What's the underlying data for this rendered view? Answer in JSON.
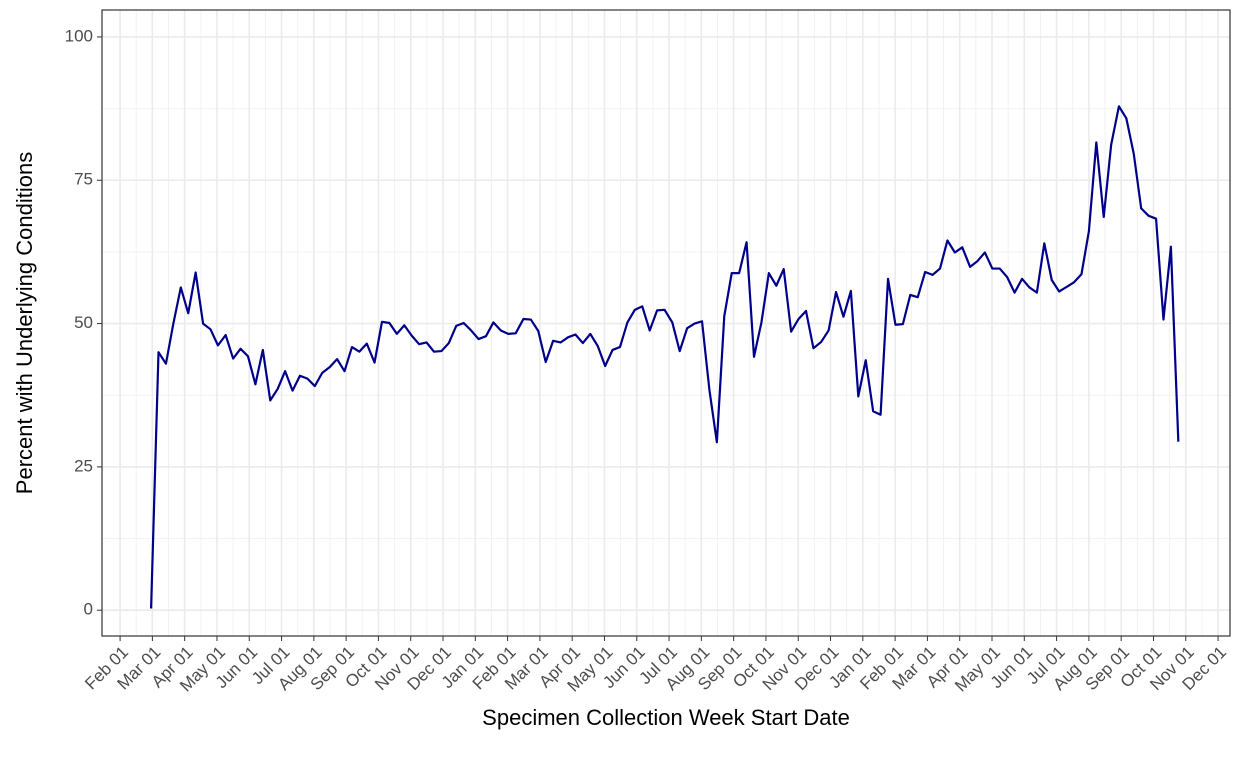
{
  "chart_data": {
    "type": "line",
    "x_label": "Specimen Collection Week Start Date",
    "y_label": "Percent with Underlying Conditions",
    "xlim": [
      -0.56,
      34.37
    ],
    "ylim": [
      -4.5,
      104.7
    ],
    "xticks": [
      {
        "value": 0,
        "label": "Feb 01"
      },
      {
        "value": 1,
        "label": "Mar 01"
      },
      {
        "value": 2,
        "label": "Apr 01"
      },
      {
        "value": 3,
        "label": "May 01"
      },
      {
        "value": 4,
        "label": "Jun 01"
      },
      {
        "value": 5,
        "label": "Jul 01"
      },
      {
        "value": 6,
        "label": "Aug 01"
      },
      {
        "value": 7,
        "label": "Sep 01"
      },
      {
        "value": 8,
        "label": "Oct 01"
      },
      {
        "value": 9,
        "label": "Nov 01"
      },
      {
        "value": 10,
        "label": "Dec 01"
      },
      {
        "value": 11,
        "label": "Jan 01"
      },
      {
        "value": 12,
        "label": "Feb 01"
      },
      {
        "value": 13,
        "label": "Mar 01"
      },
      {
        "value": 14,
        "label": "Apr 01"
      },
      {
        "value": 15,
        "label": "May 01"
      },
      {
        "value": 16,
        "label": "Jun 01"
      },
      {
        "value": 17,
        "label": "Jul 01"
      },
      {
        "value": 18,
        "label": "Aug 01"
      },
      {
        "value": 19,
        "label": "Sep 01"
      },
      {
        "value": 20,
        "label": "Oct 01"
      },
      {
        "value": 21,
        "label": "Nov 01"
      },
      {
        "value": 22,
        "label": "Dec 01"
      },
      {
        "value": 23,
        "label": "Jan 01"
      },
      {
        "value": 24,
        "label": "Feb 01"
      },
      {
        "value": 25,
        "label": "Mar 01"
      },
      {
        "value": 26,
        "label": "Apr 01"
      },
      {
        "value": 27,
        "label": "May 01"
      },
      {
        "value": 28,
        "label": "Jun 01"
      },
      {
        "value": 29,
        "label": "Jul 01"
      },
      {
        "value": 30,
        "label": "Aug 01"
      },
      {
        "value": 31,
        "label": "Sep 01"
      },
      {
        "value": 32,
        "label": "Oct 01"
      },
      {
        "value": 33,
        "label": "Nov 01"
      },
      {
        "value": 34,
        "label": "Dec 01"
      }
    ],
    "yticks": [
      0,
      25,
      50,
      75,
      100
    ],
    "grid": true,
    "x": [
      0.96,
      1.19,
      1.42,
      1.65,
      1.88,
      2.11,
      2.34,
      2.57,
      2.8,
      3.03,
      3.27,
      3.5,
      3.73,
      3.96,
      4.19,
      4.42,
      4.65,
      4.88,
      5.11,
      5.34,
      5.57,
      5.8,
      6.03,
      6.26,
      6.49,
      6.72,
      6.95,
      7.18,
      7.41,
      7.64,
      7.88,
      8.11,
      8.34,
      8.57,
      8.8,
      9.03,
      9.26,
      9.49,
      9.72,
      9.95,
      10.18,
      10.41,
      10.64,
      10.87,
      11.1,
      11.33,
      11.56,
      11.79,
      12.02,
      12.25,
      12.49,
      12.72,
      12.95,
      13.18,
      13.41,
      13.64,
      13.87,
      14.1,
      14.33,
      14.56,
      14.79,
      15.02,
      15.25,
      15.48,
      15.71,
      15.94,
      16.17,
      16.4,
      16.63,
      16.86,
      17.1,
      17.33,
      17.56,
      17.79,
      18.02,
      18.25,
      18.48,
      18.71,
      18.94,
      19.17,
      19.4,
      19.63,
      19.86,
      20.09,
      20.32,
      20.55,
      20.78,
      21.01,
      21.24,
      21.47,
      21.71,
      21.94,
      22.17,
      22.4,
      22.63,
      22.86,
      23.09,
      23.32,
      23.55,
      23.78,
      24.01,
      24.24,
      24.47,
      24.7,
      24.93,
      25.16,
      25.39,
      25.62,
      25.85,
      26.08,
      26.32,
      26.55,
      26.78,
      27.01,
      27.24,
      27.47,
      27.7,
      27.93,
      28.16,
      28.39,
      28.62,
      28.85,
      29.08,
      29.31,
      29.54,
      29.77,
      30.0,
      30.23,
      30.46,
      30.69,
      30.93,
      31.16,
      31.39,
      31.62,
      31.85,
      32.08,
      32.31,
      32.54,
      32.77
    ],
    "series": [
      {
        "color": "#00008b",
        "values": [
          0.3,
          45,
          43,
          50,
          56.3,
          51.8,
          58.9,
          50,
          49,
          46.2,
          48,
          43.9,
          45.6,
          44.3,
          39.4,
          45.4,
          36.6,
          38.6,
          41.7,
          38.3,
          40.9,
          40.4,
          39.1,
          41.4,
          42.4,
          43.8,
          41.7,
          45.9,
          45.1,
          46.5,
          43.2,
          50.3,
          50.1,
          48.2,
          49.7,
          47.9,
          46.4,
          46.7,
          45.1,
          45.2,
          46.6,
          49.6,
          50.1,
          48.8,
          47.3,
          47.8,
          50.2,
          48.8,
          48.2,
          48.3,
          50.8,
          50.7,
          48.7,
          43.3,
          47,
          46.7,
          47.6,
          48.1,
          46.6,
          48.2,
          46.1,
          42.6,
          45.4,
          45.9,
          50.2,
          52.4,
          53,
          48.8,
          52.3,
          52.4,
          50.2,
          45.2,
          49.2,
          50,
          50.4,
          38.4,
          29.3,
          51.3,
          58.8,
          58.8,
          64.2,
          44.2,
          50.2,
          58.8,
          56.6,
          59.5,
          48.6,
          50.8,
          52.2,
          45.7,
          46.8,
          48.8,
          55.5,
          51.2,
          55.7,
          37.3,
          43.6,
          34.7,
          34.1,
          57.8,
          49.8,
          49.9,
          55,
          54.6,
          59,
          58.5,
          59.6,
          64.5,
          62.4,
          63.3,
          59.9,
          60.9,
          62.4,
          59.6,
          59.6,
          58.1,
          55.4,
          57.8,
          56.3,
          55.4,
          64,
          57.6,
          55.6,
          56.4,
          57.2,
          58.6,
          66.1,
          81.6,
          68.6,
          81.2,
          87.9,
          85.8,
          79.6,
          70.1,
          68.8,
          68.3,
          50.7,
          63.4,
          29.4
        ]
      }
    ]
  }
}
